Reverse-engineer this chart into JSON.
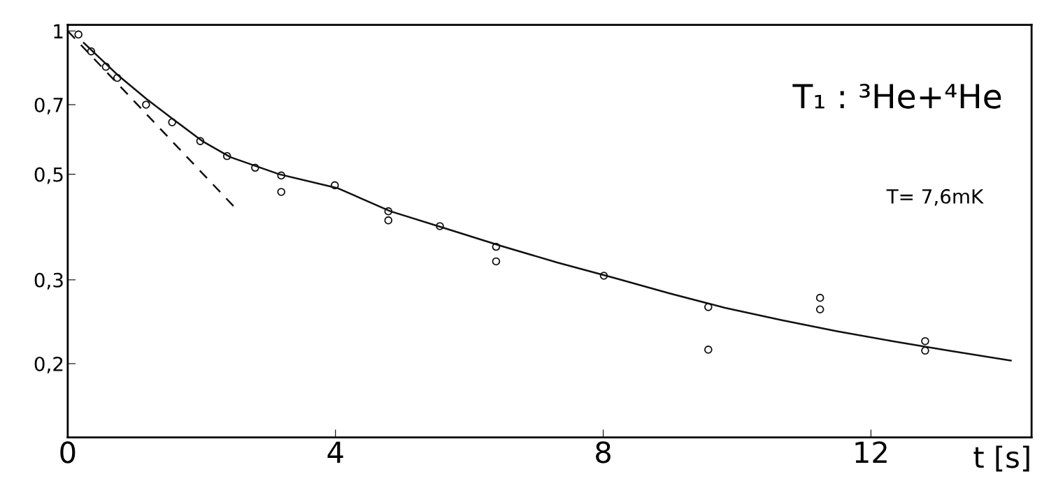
{
  "chart_data": {
    "type": "scatter",
    "xlabel": "t [s]",
    "log": "y",
    "grid": false,
    "xlim": [
      0,
      14.4
    ],
    "xticks": [
      0,
      4,
      8,
      12
    ],
    "ylim": [
      0.14,
      1.03
    ],
    "yticks": [
      1,
      {
        "value": 0.7,
        "label": "0,7"
      },
      {
        "value": 0.5,
        "label": "0,5"
      },
      {
        "value": 0.3,
        "label": "0,3"
      },
      {
        "value": 0.2,
        "label": "0,2"
      }
    ],
    "annotations": [
      "T₁ : ³He+⁴He",
      "T= 7,6mK"
    ],
    "series": [
      {
        "color": "#111111",
        "marker": "circle",
        "x": [
          0.16,
          0.35,
          0.57,
          0.74,
          1.17,
          1.56,
          1.98,
          2.38,
          2.8,
          3.19,
          3.19,
          3.99,
          4.79,
          4.79,
          5.56,
          6.4,
          6.4,
          8.01,
          9.57,
          9.57,
          11.24,
          11.24,
          12.81,
          12.81
        ],
        "values": [
          0.983,
          0.906,
          0.841,
          0.797,
          0.7,
          0.643,
          0.587,
          0.546,
          0.516,
          0.497,
          0.459,
          0.474,
          0.418,
          0.4,
          0.389,
          0.352,
          0.328,
          0.306,
          0.263,
          0.214,
          0.275,
          0.26,
          0.223,
          0.213
        ]
      },
      {
        "type": "line",
        "color": "#111111",
        "line_style": "solid",
        "marker": "none",
        "x": [
          0.24,
          0.76,
          1.18,
          1.59,
          2.01,
          2.43,
          3.16,
          4.04,
          4.82,
          5.66,
          6.49,
          7.32,
          8.16,
          8.99,
          9.82,
          10.66,
          11.49,
          12.32,
          13.16,
          14.09
        ],
        "values": [
          0.944,
          0.805,
          0.719,
          0.65,
          0.587,
          0.543,
          0.5,
          0.467,
          0.418,
          0.384,
          0.353,
          0.326,
          0.303,
          0.281,
          0.262,
          0.247,
          0.234,
          0.223,
          0.213,
          0.203
        ]
      },
      {
        "type": "line",
        "color": "#111111",
        "line_style": "dashed",
        "marker": "none",
        "x": [
          0,
          2.48
        ],
        "values": [
          1,
          0.428
        ]
      }
    ]
  }
}
